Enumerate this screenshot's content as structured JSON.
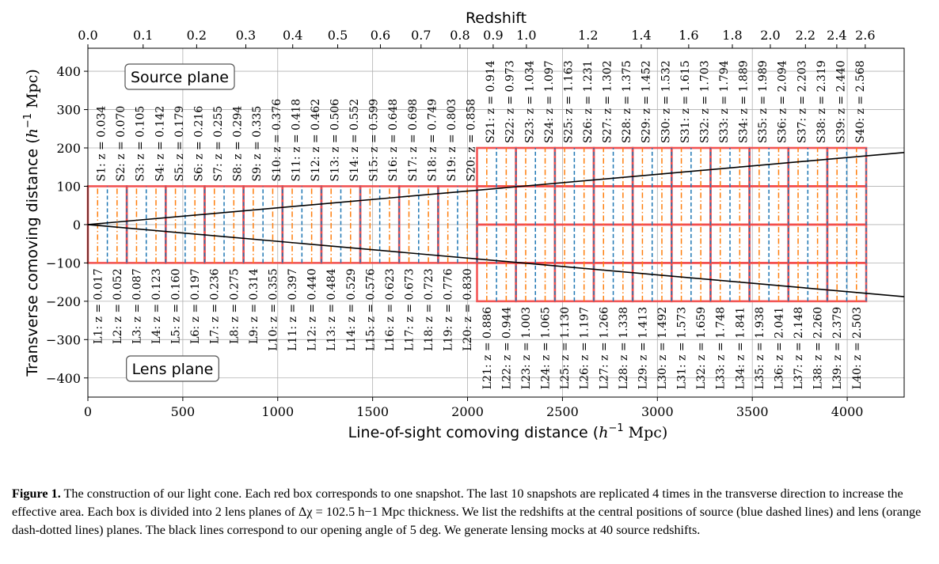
{
  "chart_data": {
    "type": "line",
    "top_axis_title": "Redshift",
    "xlabel": "Line-of-sight comoving distance ($h^{-1}\\,$Mpc)",
    "xlabel_parts": [
      "Line-of-sight comoving distance (",
      "h",
      "−1",
      " Mpc)"
    ],
    "ylabel": "Transverse comoving distance ($h^{-1}\\,$Mpc)",
    "ylabel_parts": [
      "Transverse comoving distance (",
      "h",
      "−1",
      " Mpc)"
    ],
    "xlim": [
      0,
      4300
    ],
    "ylim": [
      -450,
      460
    ],
    "grid": true,
    "x_ticks": [
      0,
      500,
      1000,
      1500,
      2000,
      2500,
      3000,
      3500,
      4000
    ],
    "x_tick_labels": [
      "0",
      "500",
      "1000",
      "1500",
      "2000",
      "2500",
      "3000",
      "3500",
      "4000"
    ],
    "y_ticks": [
      400,
      300,
      200,
      100,
      0,
      -100,
      -200,
      -300,
      -400
    ],
    "y_tick_labels": [
      "400",
      "300",
      "200",
      "100",
      "0",
      "−100",
      "−200",
      "−300",
      "−400"
    ],
    "top_ticks": [
      {
        "label": "0.0",
        "x": 0
      },
      {
        "label": "0.1",
        "x": 291
      },
      {
        "label": "0.2",
        "x": 573
      },
      {
        "label": "0.3",
        "x": 832
      },
      {
        "label": "0.4",
        "x": 1079
      },
      {
        "label": "0.5",
        "x": 1316
      },
      {
        "label": "0.6",
        "x": 1541
      },
      {
        "label": "0.7",
        "x": 1755
      },
      {
        "label": "0.8",
        "x": 1960
      },
      {
        "label": "0.9",
        "x": 2135
      },
      {
        "label": "1.0",
        "x": 2310
      },
      {
        "label": "1.2",
        "x": 2635
      },
      {
        "label": "1.4",
        "x": 2915
      },
      {
        "label": "1.6",
        "x": 3165
      },
      {
        "label": "1.8",
        "x": 3395
      },
      {
        "label": "2.0",
        "x": 3595
      },
      {
        "label": "2.2",
        "x": 3780
      },
      {
        "label": "2.4",
        "x": 3945
      },
      {
        "label": "2.6",
        "x": 4095
      }
    ],
    "box_width": 205,
    "lens_plane_thickness": 102.5,
    "low_z_boxes": {
      "count": 10,
      "x_start": 0,
      "y_range": [
        -100,
        100
      ]
    },
    "high_z_boxes": {
      "count": 10,
      "x_start": 2050,
      "y_range": [
        -200,
        200
      ],
      "replicas": 4
    },
    "cone_lines": [
      {
        "x": [
          0,
          4300
        ],
        "y": [
          0,
          188
        ]
      },
      {
        "x": [
          0,
          4300
        ],
        "y": [
          0,
          -188
        ]
      }
    ],
    "source_plane_label": "Source plane",
    "lens_plane_label": "Lens plane",
    "colors": {
      "box": "#f24d4d",
      "source_plane": "#1f77b4",
      "lens_plane": "#ff7f0e",
      "cone": "#000000",
      "grid": "#b0b0b0"
    },
    "source_planes": [
      {
        "label": "S1: z = 0.034",
        "x": 102.5
      },
      {
        "label": "S2: z = 0.070",
        "x": 205
      },
      {
        "label": "S3: z = 0.105",
        "x": 307.5
      },
      {
        "label": "S4: z = 0.142",
        "x": 410
      },
      {
        "label": "S5: z = 0.179",
        "x": 512.5
      },
      {
        "label": "S6: z = 0.216",
        "x": 615
      },
      {
        "label": "S7: z = 0.255",
        "x": 717.5
      },
      {
        "label": "S8: z = 0.294",
        "x": 820
      },
      {
        "label": "S9: z = 0.335",
        "x": 922.5
      },
      {
        "label": "S10: z = 0.376",
        "x": 1025
      },
      {
        "label": "S11: z = 0.418",
        "x": 1127.5
      },
      {
        "label": "S12: z = 0.462",
        "x": 1230
      },
      {
        "label": "S13: z = 0.506",
        "x": 1332.5
      },
      {
        "label": "S14: z = 0.552",
        "x": 1435
      },
      {
        "label": "S15: z = 0.599",
        "x": 1537.5
      },
      {
        "label": "S16: z = 0.648",
        "x": 1640
      },
      {
        "label": "S17: z = 0.698",
        "x": 1742.5
      },
      {
        "label": "S18: z = 0.749",
        "x": 1845
      },
      {
        "label": "S19: z = 0.803",
        "x": 1947.5
      },
      {
        "label": "S20: z = 0.858",
        "x": 2050
      },
      {
        "label": "S21: z = 0.914",
        "x": 2152.5
      },
      {
        "label": "S22: z = 0.973",
        "x": 2255
      },
      {
        "label": "S23: z = 1.034",
        "x": 2357.5
      },
      {
        "label": "S24: z = 1.097",
        "x": 2460
      },
      {
        "label": "S25: z = 1.163",
        "x": 2562.5
      },
      {
        "label": "S26: z = 1.231",
        "x": 2665
      },
      {
        "label": "S27: z = 1.302",
        "x": 2767.5
      },
      {
        "label": "S28: z = 1.375",
        "x": 2870
      },
      {
        "label": "S29: z = 1.452",
        "x": 2972.5
      },
      {
        "label": "S30: z = 1.532",
        "x": 3075
      },
      {
        "label": "S31: z = 1.615",
        "x": 3177.5
      },
      {
        "label": "S32: z = 1.703",
        "x": 3280
      },
      {
        "label": "S33: z = 1.794",
        "x": 3382.5
      },
      {
        "label": "S34: z = 1.889",
        "x": 3485
      },
      {
        "label": "S35: z = 1.989",
        "x": 3587.5
      },
      {
        "label": "S36: z = 2.094",
        "x": 3690
      },
      {
        "label": "S37: z = 2.203",
        "x": 3792.5
      },
      {
        "label": "S38: z = 2.319",
        "x": 3895
      },
      {
        "label": "S39: z = 2.440",
        "x": 3997.5
      },
      {
        "label": "S40: z = 2.568",
        "x": 4100
      }
    ],
    "lens_planes": [
      {
        "label": "L1: z = 0.017",
        "x": 51.25
      },
      {
        "label": "L2: z = 0.052",
        "x": 153.75
      },
      {
        "label": "L3: z = 0.087",
        "x": 256.25
      },
      {
        "label": "L4: z = 0.123",
        "x": 358.75
      },
      {
        "label": "L5: z = 0.160",
        "x": 461.25
      },
      {
        "label": "L6: z = 0.197",
        "x": 563.75
      },
      {
        "label": "L7: z = 0.236",
        "x": 666.25
      },
      {
        "label": "L8: z = 0.275",
        "x": 768.75
      },
      {
        "label": "L9: z = 0.314",
        "x": 871.25
      },
      {
        "label": "L10: z = 0.355",
        "x": 973.75
      },
      {
        "label": "L11: z = 0.397",
        "x": 1076.25
      },
      {
        "label": "L12: z = 0.440",
        "x": 1178.75
      },
      {
        "label": "L13: z = 0.484",
        "x": 1281.25
      },
      {
        "label": "L14: z = 0.529",
        "x": 1383.75
      },
      {
        "label": "L15: z = 0.576",
        "x": 1486.25
      },
      {
        "label": "L16: z = 0.623",
        "x": 1588.75
      },
      {
        "label": "L17: z = 0.673",
        "x": 1691.25
      },
      {
        "label": "L18: z = 0.723",
        "x": 1793.75
      },
      {
        "label": "L19: z = 0.776",
        "x": 1896.25
      },
      {
        "label": "L20: z = 0.830",
        "x": 1998.75
      },
      {
        "label": "L21: z = 0.886",
        "x": 2101.25
      },
      {
        "label": "L22: z = 0.944",
        "x": 2203.75
      },
      {
        "label": "L23: z = 1.003",
        "x": 2306.25
      },
      {
        "label": "L24: z = 1.065",
        "x": 2408.75
      },
      {
        "label": "L25: z = 1.130",
        "x": 2511.25
      },
      {
        "label": "L26: z = 1.197",
        "x": 2613.75
      },
      {
        "label": "L27: z = 1.266",
        "x": 2716.25
      },
      {
        "label": "L28: z = 1.338",
        "x": 2818.75
      },
      {
        "label": "L29: z = 1.413",
        "x": 2921.25
      },
      {
        "label": "L30: z = 1.492",
        "x": 3023.75
      },
      {
        "label": "L31: z = 1.573",
        "x": 3126.25
      },
      {
        "label": "L32: z = 1.659",
        "x": 3228.75
      },
      {
        "label": "L33: z = 1.748",
        "x": 3331.25
      },
      {
        "label": "L34: z = 1.841",
        "x": 3433.75
      },
      {
        "label": "L35: z = 1.938",
        "x": 3536.25
      },
      {
        "label": "L36: z = 2.041",
        "x": 3638.75
      },
      {
        "label": "L37: z = 2.148",
        "x": 3741.25
      },
      {
        "label": "L38: z = 2.260",
        "x": 3843.75
      },
      {
        "label": "L39: z = 2.379",
        "x": 3946.25
      },
      {
        "label": "L40: z = 2.503",
        "x": 4048.75
      }
    ]
  },
  "caption": {
    "label": "Figure 1.",
    "text": " The construction of our light cone. Each red box corresponds to one snapshot. The last 10 snapshots are replicated 4 times in the transverse direction to increase the effective area. Each box is divided into 2 lens planes of Δχ = 102.5 h−1 Mpc thickness. We list the redshifts at the central positions of source (blue dashed lines) and lens (orange dash-dotted lines) planes. The black lines correspond to our opening angle of 5 deg. We generate lensing mocks at 40 source redshifts."
  }
}
